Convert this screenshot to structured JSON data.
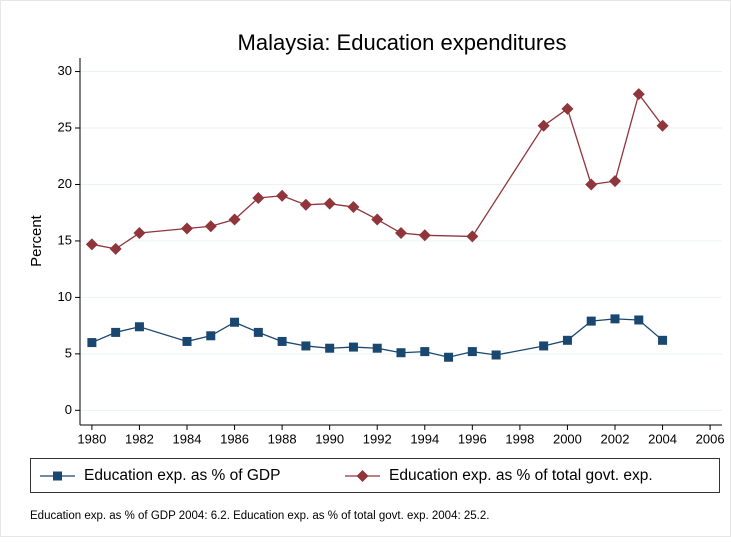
{
  "chart_data": {
    "type": "line",
    "title": "Malaysia: Education expenditures",
    "y_label": "Percent",
    "note": "Education exp. as % of GDP 2004: 6.2. Education exp. as % of total govt. exp. 2004: 25.2.",
    "xlim": [
      1979.5,
      2006.5
    ],
    "xticks": [
      1980,
      1982,
      1984,
      1986,
      1988,
      1990,
      1992,
      1994,
      1996,
      1998,
      2000,
      2002,
      2004,
      2006
    ],
    "ylim": [
      -1.3,
      31.2
    ],
    "yticks": [
      0,
      5,
      10,
      15,
      20,
      25,
      30
    ],
    "grid": true,
    "series": [
      {
        "name": "Education exp. as % of GDP",
        "color": "#1a476f",
        "marker": "square",
        "x": [
          1980,
          1981,
          1982,
          1984,
          1985,
          1986,
          1987,
          1988,
          1989,
          1990,
          1991,
          1992,
          1993,
          1994,
          1995,
          1996,
          1997,
          1999,
          2000,
          2001,
          2002,
          2003,
          2004
        ],
        "values": [
          6.0,
          6.9,
          7.4,
          6.1,
          6.6,
          7.8,
          6.9,
          6.1,
          5.7,
          5.5,
          5.6,
          5.5,
          5.1,
          5.2,
          4.7,
          5.2,
          4.9,
          5.7,
          6.2,
          7.9,
          8.1,
          8.0,
          6.2
        ]
      },
      {
        "name": "Education exp. as % of total govt. exp.",
        "color": "#90353b",
        "marker": "diamond",
        "x": [
          1980,
          1981,
          1982,
          1984,
          1985,
          1986,
          1987,
          1988,
          1989,
          1990,
          1991,
          1992,
          1993,
          1994,
          1996,
          1999,
          2000,
          2001,
          2002,
          2003,
          2004
        ],
        "values": [
          14.7,
          14.3,
          15.7,
          16.1,
          16.3,
          16.9,
          18.8,
          19.0,
          18.2,
          18.3,
          18.0,
          16.9,
          15.7,
          15.5,
          15.4,
          25.2,
          26.7,
          20.0,
          20.3,
          28.0,
          25.2
        ]
      }
    ]
  }
}
